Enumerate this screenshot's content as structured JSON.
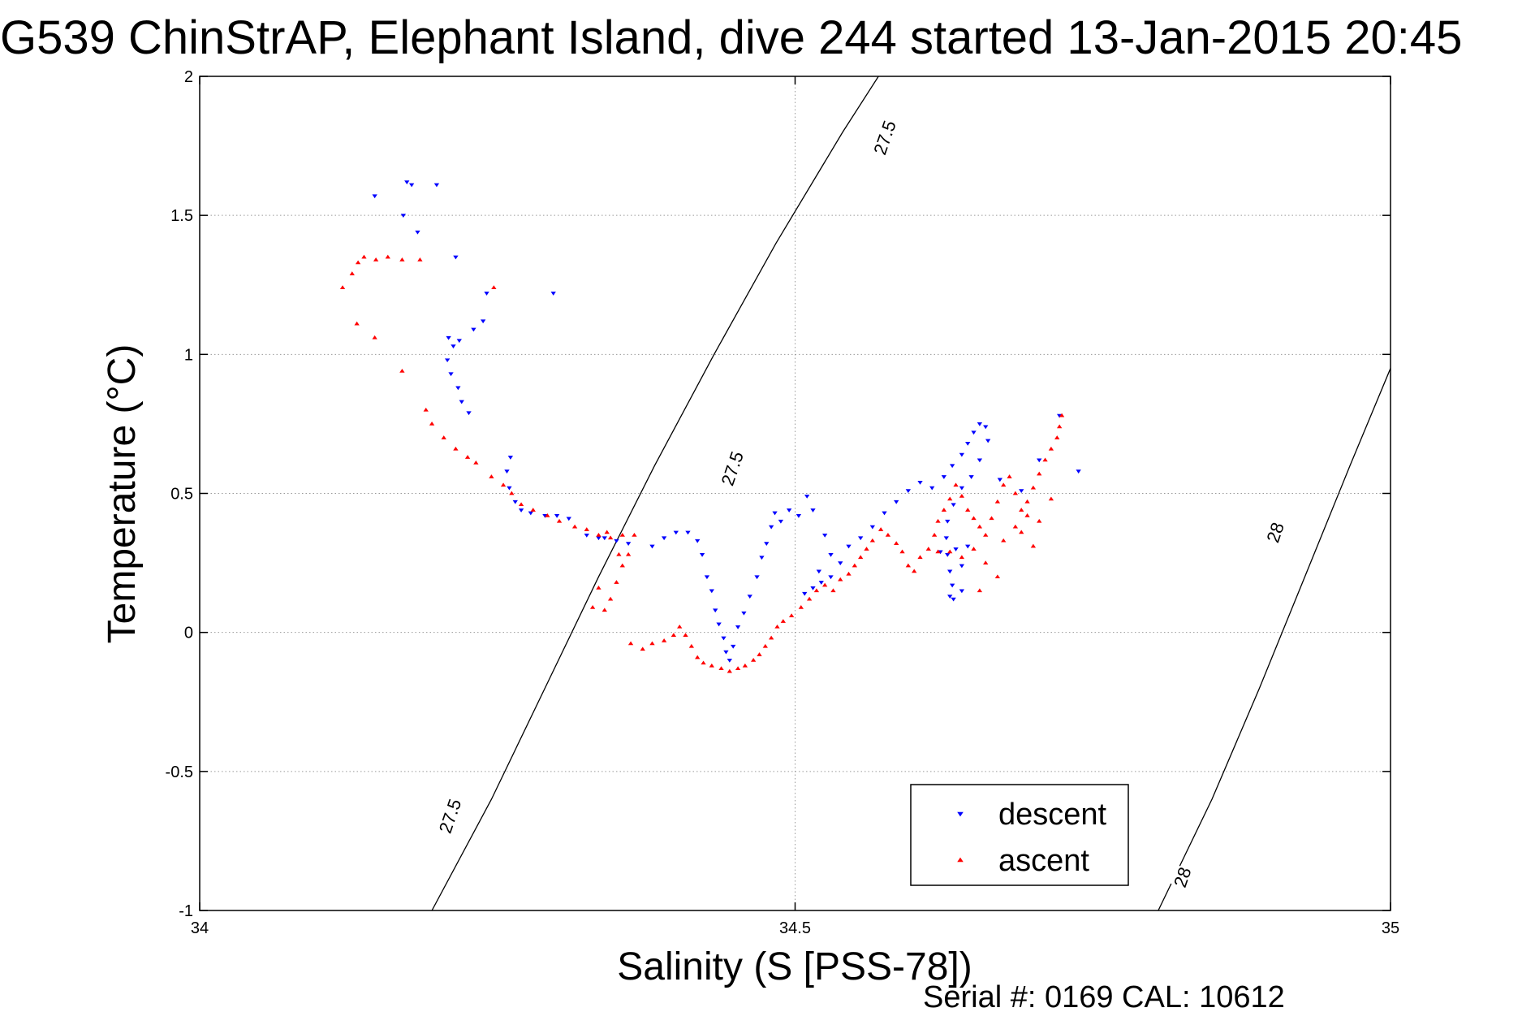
{
  "title": "G539 ChinStrAP, Elephant Island, dive 244 started 13-Jan-2015 20:45",
  "footer": "Serial #: 0169 CAL: 10612",
  "chart_data": {
    "type": "scatter",
    "xlabel": "Salinity (S [PSS-78])",
    "ylabel": "Temperature (°C)",
    "xlim": [
      34,
      35
    ],
    "ylim": [
      -1,
      2
    ],
    "xticks": [
      34,
      34.5,
      35
    ],
    "xtick_labels": [
      "34",
      "34.5",
      "35"
    ],
    "yticks": [
      -1,
      -0.5,
      0,
      0.5,
      1,
      1.5,
      2
    ],
    "ytick_labels": [
      "-1",
      "-0.5",
      "0",
      "0.5",
      "1",
      "1.5",
      "2"
    ],
    "grid": true,
    "legend_position": "bottom-right",
    "isopycnals": [
      {
        "label": "27.5",
        "points": [
          [
            34.195,
            -1.0
          ],
          [
            34.245,
            -0.6
          ],
          [
            34.29,
            -0.2
          ],
          [
            34.335,
            0.2
          ],
          [
            34.382,
            0.6
          ],
          [
            34.432,
            1.0
          ],
          [
            34.484,
            1.4
          ],
          [
            34.54,
            1.8
          ],
          [
            34.57,
            2.0
          ]
        ]
      },
      {
        "label": "28",
        "points": [
          [
            34.805,
            -1.0
          ],
          [
            34.85,
            -0.6
          ],
          [
            34.89,
            -0.2
          ],
          [
            34.928,
            0.2
          ],
          [
            34.966,
            0.6
          ],
          [
            35.0,
            0.95
          ]
        ]
      }
    ],
    "isopycnal_label_positions": [
      {
        "label": "27.5",
        "x": 34.575,
        "y": 1.78
      },
      {
        "label": "27.5",
        "x": 34.447,
        "y": 0.59
      },
      {
        "label": "27.5",
        "x": 34.21,
        "y": -0.66
      },
      {
        "label": "28",
        "x": 34.903,
        "y": 0.36
      },
      {
        "label": "28",
        "x": 34.825,
        "y": -0.88
      }
    ],
    "series": [
      {
        "name": "descent",
        "color": "#0000ff",
        "marker": "triangle-down",
        "points": [
          [
            34.147,
            1.57
          ],
          [
            34.174,
            1.62
          ],
          [
            34.178,
            1.61
          ],
          [
            34.199,
            1.61
          ],
          [
            34.171,
            1.5
          ],
          [
            34.183,
            1.44
          ],
          [
            34.215,
            1.35
          ],
          [
            34.241,
            1.22
          ],
          [
            34.297,
            1.22
          ],
          [
            34.238,
            1.12
          ],
          [
            34.209,
            1.06
          ],
          [
            34.218,
            1.05
          ],
          [
            34.23,
            1.09
          ],
          [
            34.213,
            1.03
          ],
          [
            34.208,
            0.98
          ],
          [
            34.211,
            0.93
          ],
          [
            34.217,
            0.88
          ],
          [
            34.22,
            0.83
          ],
          [
            34.226,
            0.79
          ],
          [
            34.261,
            0.63
          ],
          [
            34.258,
            0.58
          ],
          [
            34.26,
            0.52
          ],
          [
            34.265,
            0.47
          ],
          [
            34.27,
            0.44
          ],
          [
            34.278,
            0.43
          ],
          [
            34.29,
            0.42
          ],
          [
            34.3,
            0.42
          ],
          [
            34.31,
            0.41
          ],
          [
            34.325,
            0.35
          ],
          [
            34.335,
            0.34
          ],
          [
            34.34,
            0.34
          ],
          [
            34.35,
            0.33
          ],
          [
            34.36,
            0.32
          ],
          [
            34.38,
            0.31
          ],
          [
            34.39,
            0.34
          ],
          [
            34.4,
            0.36
          ],
          [
            34.41,
            0.36
          ],
          [
            34.418,
            0.33
          ],
          [
            34.422,
            0.28
          ],
          [
            34.426,
            0.2
          ],
          [
            34.43,
            0.15
          ],
          [
            34.433,
            0.08
          ],
          [
            34.436,
            0.03
          ],
          [
            34.44,
            -0.02
          ],
          [
            34.442,
            -0.07
          ],
          [
            34.445,
            -0.1
          ],
          [
            34.448,
            -0.05
          ],
          [
            34.452,
            0.02
          ],
          [
            34.457,
            0.07
          ],
          [
            34.462,
            0.13
          ],
          [
            34.468,
            0.2
          ],
          [
            34.472,
            0.27
          ],
          [
            34.476,
            0.32
          ],
          [
            34.48,
            0.38
          ],
          [
            34.483,
            0.43
          ],
          [
            34.488,
            0.4
          ],
          [
            34.495,
            0.44
          ],
          [
            34.503,
            0.42
          ],
          [
            34.51,
            0.49
          ],
          [
            34.515,
            0.44
          ],
          [
            34.525,
            0.35
          ],
          [
            34.53,
            0.28
          ],
          [
            34.52,
            0.22
          ],
          [
            34.508,
            0.14
          ],
          [
            34.515,
            0.16
          ],
          [
            34.522,
            0.18
          ],
          [
            34.53,
            0.2
          ],
          [
            34.538,
            0.25
          ],
          [
            34.545,
            0.31
          ],
          [
            34.555,
            0.34
          ],
          [
            34.565,
            0.38
          ],
          [
            34.575,
            0.43
          ],
          [
            34.585,
            0.47
          ],
          [
            34.595,
            0.51
          ],
          [
            34.605,
            0.54
          ],
          [
            34.615,
            0.52
          ],
          [
            34.625,
            0.56
          ],
          [
            34.632,
            0.6
          ],
          [
            34.64,
            0.64
          ],
          [
            34.645,
            0.68
          ],
          [
            34.65,
            0.72
          ],
          [
            34.655,
            0.75
          ],
          [
            34.66,
            0.74
          ],
          [
            34.662,
            0.69
          ],
          [
            34.655,
            0.62
          ],
          [
            34.648,
            0.56
          ],
          [
            34.64,
            0.52
          ],
          [
            34.633,
            0.46
          ],
          [
            34.628,
            0.4
          ],
          [
            34.627,
            0.34
          ],
          [
            34.628,
            0.28
          ],
          [
            34.63,
            0.22
          ],
          [
            34.632,
            0.17
          ],
          [
            34.63,
            0.13
          ],
          [
            34.633,
            0.12
          ],
          [
            34.64,
            0.15
          ],
          [
            34.64,
            0.24
          ],
          [
            34.645,
            0.31
          ],
          [
            34.635,
            0.3
          ],
          [
            34.622,
            0.29
          ],
          [
            34.672,
            0.55
          ],
          [
            34.69,
            0.51
          ],
          [
            34.705,
            0.62
          ],
          [
            34.722,
            0.78
          ],
          [
            34.738,
            0.58
          ]
        ]
      },
      {
        "name": "ascent",
        "color": "#ff0000",
        "marker": "triangle-up",
        "points": [
          [
            34.12,
            1.24
          ],
          [
            34.128,
            1.29
          ],
          [
            34.133,
            1.33
          ],
          [
            34.138,
            1.35
          ],
          [
            34.148,
            1.34
          ],
          [
            34.158,
            1.35
          ],
          [
            34.17,
            1.34
          ],
          [
            34.185,
            1.34
          ],
          [
            34.247,
            1.24
          ],
          [
            34.132,
            1.11
          ],
          [
            34.147,
            1.06
          ],
          [
            34.17,
            0.94
          ],
          [
            34.19,
            0.8
          ],
          [
            34.195,
            0.75
          ],
          [
            34.205,
            0.7
          ],
          [
            34.215,
            0.66
          ],
          [
            34.225,
            0.63
          ],
          [
            34.232,
            0.61
          ],
          [
            34.245,
            0.56
          ],
          [
            34.255,
            0.53
          ],
          [
            34.262,
            0.5
          ],
          [
            34.27,
            0.46
          ],
          [
            34.28,
            0.44
          ],
          [
            34.292,
            0.42
          ],
          [
            34.302,
            0.4
          ],
          [
            34.315,
            0.38
          ],
          [
            34.325,
            0.37
          ],
          [
            34.335,
            0.35
          ],
          [
            34.345,
            0.34
          ],
          [
            34.355,
            0.35
          ],
          [
            34.365,
            0.35
          ],
          [
            34.36,
            0.28
          ],
          [
            34.355,
            0.24
          ],
          [
            34.35,
            0.18
          ],
          [
            34.345,
            0.12
          ],
          [
            34.335,
            0.16
          ],
          [
            34.33,
            0.09
          ],
          [
            34.34,
            0.08
          ],
          [
            34.352,
            0.28
          ],
          [
            34.342,
            0.36
          ],
          [
            34.362,
            -0.04
          ],
          [
            34.372,
            -0.06
          ],
          [
            34.38,
            -0.04
          ],
          [
            34.39,
            -0.03
          ],
          [
            34.398,
            -0.01
          ],
          [
            34.403,
            0.02
          ],
          [
            34.408,
            -0.01
          ],
          [
            34.413,
            -0.05
          ],
          [
            34.418,
            -0.09
          ],
          [
            34.423,
            -0.11
          ],
          [
            34.43,
            -0.12
          ],
          [
            34.438,
            -0.13
          ],
          [
            34.445,
            -0.14
          ],
          [
            34.452,
            -0.13
          ],
          [
            34.458,
            -0.12
          ],
          [
            34.465,
            -0.1
          ],
          [
            34.47,
            -0.08
          ],
          [
            34.475,
            -0.05
          ],
          [
            34.48,
            -0.02
          ],
          [
            34.485,
            0.02
          ],
          [
            34.49,
            0.04
          ],
          [
            34.497,
            0.06
          ],
          [
            34.505,
            0.09
          ],
          [
            34.512,
            0.12
          ],
          [
            34.518,
            0.15
          ],
          [
            34.525,
            0.17
          ],
          [
            34.532,
            0.15
          ],
          [
            34.538,
            0.19
          ],
          [
            34.545,
            0.21
          ],
          [
            34.55,
            0.24
          ],
          [
            34.555,
            0.27
          ],
          [
            34.56,
            0.3
          ],
          [
            34.565,
            0.33
          ],
          [
            34.572,
            0.37
          ],
          [
            34.578,
            0.35
          ],
          [
            34.585,
            0.32
          ],
          [
            34.59,
            0.29
          ],
          [
            34.595,
            0.24
          ],
          [
            34.6,
            0.22
          ],
          [
            34.605,
            0.27
          ],
          [
            34.612,
            0.3
          ],
          [
            34.617,
            0.35
          ],
          [
            34.62,
            0.4
          ],
          [
            34.625,
            0.44
          ],
          [
            34.63,
            0.48
          ],
          [
            34.635,
            0.53
          ],
          [
            34.64,
            0.49
          ],
          [
            34.645,
            0.44
          ],
          [
            34.65,
            0.41
          ],
          [
            34.655,
            0.38
          ],
          [
            34.66,
            0.35
          ],
          [
            34.665,
            0.41
          ],
          [
            34.67,
            0.47
          ],
          [
            34.675,
            0.53
          ],
          [
            34.68,
            0.56
          ],
          [
            34.685,
            0.5
          ],
          [
            34.69,
            0.44
          ],
          [
            34.695,
            0.47
          ],
          [
            34.7,
            0.52
          ],
          [
            34.705,
            0.57
          ],
          [
            34.71,
            0.62
          ],
          [
            34.715,
            0.66
          ],
          [
            34.72,
            0.7
          ],
          [
            34.722,
            0.74
          ],
          [
            34.724,
            0.78
          ],
          [
            34.66,
            0.25
          ],
          [
            34.65,
            0.3
          ],
          [
            34.64,
            0.27
          ],
          [
            34.63,
            0.29
          ],
          [
            34.62,
            0.29
          ],
          [
            34.675,
            0.33
          ],
          [
            34.685,
            0.38
          ],
          [
            34.695,
            0.42
          ],
          [
            34.705,
            0.4
          ],
          [
            34.715,
            0.48
          ],
          [
            34.69,
            0.36
          ],
          [
            34.7,
            0.31
          ],
          [
            34.67,
            0.2
          ],
          [
            34.655,
            0.15
          ]
        ]
      }
    ]
  }
}
